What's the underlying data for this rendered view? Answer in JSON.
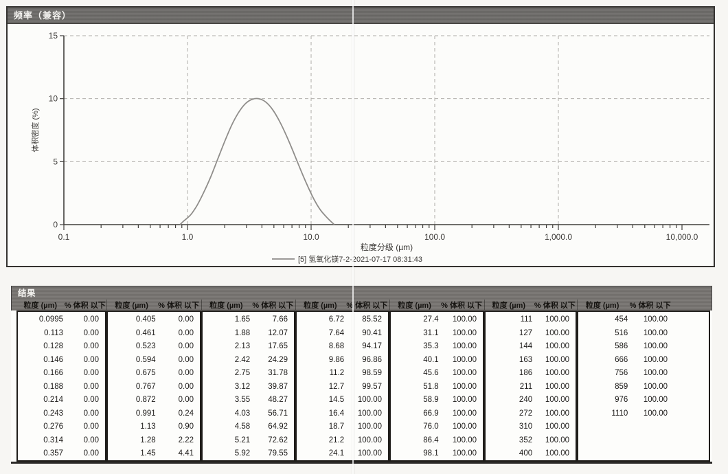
{
  "chart_data": {
    "type": "line",
    "title": "频率（兼容）",
    "xlabel": "粒度分级 (µm)",
    "ylabel": "体积密度 (%)",
    "x_scale": "log",
    "xlim": [
      0.1,
      10000
    ],
    "ylim": [
      0,
      15
    ],
    "x_tick_labels": [
      "0.1",
      "1.0",
      "10.0",
      "100.0",
      "1,000.0",
      "10,000.0"
    ],
    "y_tick_values": [
      0,
      5,
      10,
      15
    ],
    "grid": "dashed",
    "legend_position": "bottom-center",
    "legend_label": "[5] 氢氧化镁7-2-2021-07-17 08:31:43",
    "series": [
      {
        "name": "[5] 氢氧化镁7-2-2021-07-17 08:31:43",
        "color": "#8f8d8a",
        "x": [
          0.87,
          0.93,
          1.06,
          1.2,
          1.36,
          1.55,
          1.76,
          2.0,
          2.27,
          2.58,
          2.93,
          3.33,
          3.78,
          4.3,
          4.89,
          5.55,
          6.31,
          7.17,
          8.14,
          9.25,
          10.5,
          11.9,
          13.6,
          15.4
        ],
        "y": [
          0,
          0.28,
          0.78,
          1.56,
          2.6,
          3.85,
          5.23,
          6.61,
          7.87,
          8.88,
          9.59,
          9.95,
          10.0,
          9.73,
          9.12,
          8.21,
          7.07,
          5.79,
          4.46,
          3.19,
          2.05,
          1.16,
          0.51,
          0
        ]
      }
    ]
  },
  "results_table": {
    "title": "结果",
    "col_headers": {
      "size": "粒度 (µm)",
      "pct": "% 体积 以下"
    },
    "groups": [
      [
        [
          "0.0995",
          "0.00"
        ],
        [
          "0.113",
          "0.00"
        ],
        [
          "0.128",
          "0.00"
        ],
        [
          "0.146",
          "0.00"
        ],
        [
          "0.166",
          "0.00"
        ],
        [
          "0.188",
          "0.00"
        ],
        [
          "0.214",
          "0.00"
        ],
        [
          "0.243",
          "0.00"
        ],
        [
          "0.276",
          "0.00"
        ],
        [
          "0.314",
          "0.00"
        ],
        [
          "0.357",
          "0.00"
        ]
      ],
      [
        [
          "0.405",
          "0.00"
        ],
        [
          "0.461",
          "0.00"
        ],
        [
          "0.523",
          "0.00"
        ],
        [
          "0.594",
          "0.00"
        ],
        [
          "0.675",
          "0.00"
        ],
        [
          "0.767",
          "0.00"
        ],
        [
          "0.872",
          "0.00"
        ],
        [
          "0.991",
          "0.24"
        ],
        [
          "1.13",
          "0.90"
        ],
        [
          "1.28",
          "2.22"
        ],
        [
          "1.45",
          "4.41"
        ]
      ],
      [
        [
          "1.65",
          "7.66"
        ],
        [
          "1.88",
          "12.07"
        ],
        [
          "2.13",
          "17.65"
        ],
        [
          "2.42",
          "24.29"
        ],
        [
          "2.75",
          "31.78"
        ],
        [
          "3.12",
          "39.87"
        ],
        [
          "3.55",
          "48.27"
        ],
        [
          "4.03",
          "56.71"
        ],
        [
          "4.58",
          "64.92"
        ],
        [
          "5.21",
          "72.62"
        ],
        [
          "5.92",
          "79.55"
        ]
      ],
      [
        [
          "6.72",
          "85.52"
        ],
        [
          "7.64",
          "90.41"
        ],
        [
          "8.68",
          "94.17"
        ],
        [
          "9.86",
          "96.86"
        ],
        [
          "11.2",
          "98.59"
        ],
        [
          "12.7",
          "99.57"
        ],
        [
          "14.5",
          "100.00"
        ],
        [
          "16.4",
          "100.00"
        ],
        [
          "18.7",
          "100.00"
        ],
        [
          "21.2",
          "100.00"
        ],
        [
          "24.1",
          "100.00"
        ]
      ],
      [
        [
          "27.4",
          "100.00"
        ],
        [
          "31.1",
          "100.00"
        ],
        [
          "35.3",
          "100.00"
        ],
        [
          "40.1",
          "100.00"
        ],
        [
          "45.6",
          "100.00"
        ],
        [
          "51.8",
          "100.00"
        ],
        [
          "58.9",
          "100.00"
        ],
        [
          "66.9",
          "100.00"
        ],
        [
          "76.0",
          "100.00"
        ],
        [
          "86.4",
          "100.00"
        ],
        [
          "98.1",
          "100.00"
        ]
      ],
      [
        [
          "111",
          "100.00"
        ],
        [
          "127",
          "100.00"
        ],
        [
          "144",
          "100.00"
        ],
        [
          "163",
          "100.00"
        ],
        [
          "186",
          "100.00"
        ],
        [
          "211",
          "100.00"
        ],
        [
          "240",
          "100.00"
        ],
        [
          "272",
          "100.00"
        ],
        [
          "310",
          "100.00"
        ],
        [
          "352",
          "100.00"
        ],
        [
          "400",
          "100.00"
        ]
      ],
      [
        [
          "454",
          "100.00"
        ],
        [
          "516",
          "100.00"
        ],
        [
          "586",
          "100.00"
        ],
        [
          "666",
          "100.00"
        ],
        [
          "756",
          "100.00"
        ],
        [
          "859",
          "100.00"
        ],
        [
          "976",
          "100.00"
        ],
        [
          "1110",
          "100.00"
        ]
      ]
    ]
  }
}
